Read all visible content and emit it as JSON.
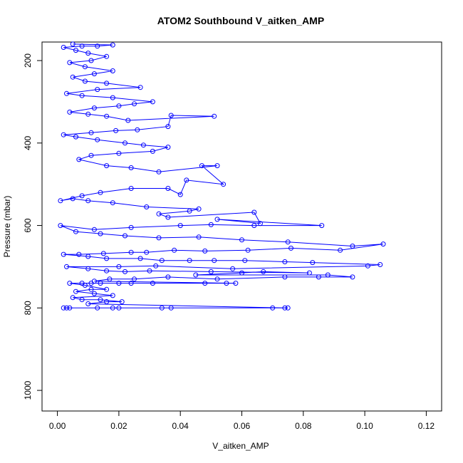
{
  "chart_data": {
    "type": "scatter",
    "title": "ATOM2 Southbound V_aitken_AMP",
    "xlabel": "V_aitken_AMP",
    "ylabel": "Pressure (mbar)",
    "xlim": [
      -0.005,
      0.125
    ],
    "ylim": [
      1050,
      155
    ],
    "y_reversed": true,
    "x_ticks": [
      "0.00",
      "0.02",
      "0.04",
      "0.06",
      "0.08",
      "0.10",
      "0.12"
    ],
    "y_ticks": [
      "200",
      "400",
      "600",
      "800",
      "1000"
    ],
    "x_tick_values": [
      0,
      0.02,
      0.04,
      0.06,
      0.08,
      0.1,
      0.12
    ],
    "y_tick_values": [
      200,
      400,
      600,
      800,
      1000
    ],
    "grid": false,
    "legend": "none",
    "color": "#0000ff",
    "point_style": "open-circle-connected",
    "series": [
      {
        "values": [
          [
            0.002,
            800
          ],
          [
            0.004,
            800
          ],
          [
            0.003,
            800
          ],
          [
            0.013,
            800
          ],
          [
            0.018,
            800
          ],
          [
            0.02,
            800
          ],
          [
            0.034,
            800
          ],
          [
            0.037,
            800
          ],
          [
            0.07,
            800
          ],
          [
            0.074,
            800
          ],
          [
            0.075,
            800
          ],
          [
            0.01,
            790
          ],
          [
            0.016,
            785
          ],
          [
            0.021,
            785
          ],
          [
            0.014,
            780
          ],
          [
            0.008,
            780
          ],
          [
            0.005,
            775
          ],
          [
            0.018,
            770
          ],
          [
            0.012,
            765
          ],
          [
            0.006,
            760
          ],
          [
            0.011,
            755
          ],
          [
            0.016,
            755
          ],
          [
            0.009,
            745
          ],
          [
            0.004,
            740
          ],
          [
            0.008,
            740
          ],
          [
            0.011,
            740
          ],
          [
            0.014,
            740
          ],
          [
            0.02,
            740
          ],
          [
            0.024,
            740
          ],
          [
            0.031,
            740
          ],
          [
            0.048,
            740
          ],
          [
            0.055,
            740
          ],
          [
            0.058,
            740
          ],
          [
            0.012,
            735
          ],
          [
            0.017,
            730
          ],
          [
            0.025,
            730
          ],
          [
            0.036,
            725
          ],
          [
            0.052,
            730
          ],
          [
            0.074,
            725
          ],
          [
            0.085,
            725
          ],
          [
            0.096,
            725
          ],
          [
            0.088,
            720
          ],
          [
            0.045,
            720
          ],
          [
            0.06,
            715
          ],
          [
            0.067,
            712
          ],
          [
            0.082,
            715
          ],
          [
            0.05,
            712
          ],
          [
            0.03,
            710
          ],
          [
            0.022,
            712
          ],
          [
            0.016,
            710
          ],
          [
            0.01,
            705
          ],
          [
            0.003,
            700
          ],
          [
            0.02,
            700
          ],
          [
            0.032,
            698
          ],
          [
            0.057,
            705
          ],
          [
            0.101,
            698
          ],
          [
            0.105,
            695
          ],
          [
            0.083,
            690
          ],
          [
            0.074,
            688
          ],
          [
            0.061,
            685
          ],
          [
            0.051,
            685
          ],
          [
            0.043,
            685
          ],
          [
            0.034,
            685
          ],
          [
            0.027,
            680
          ],
          [
            0.016,
            680
          ],
          [
            0.01,
            675
          ],
          [
            0.002,
            670
          ],
          [
            0.007,
            670
          ],
          [
            0.015,
            668
          ],
          [
            0.024,
            665
          ],
          [
            0.029,
            665
          ],
          [
            0.038,
            660
          ],
          [
            0.048,
            662
          ],
          [
            0.062,
            660
          ],
          [
            0.076,
            655
          ],
          [
            0.092,
            660
          ],
          [
            0.106,
            645
          ],
          [
            0.096,
            650
          ],
          [
            0.075,
            640
          ],
          [
            0.06,
            635
          ],
          [
            0.046,
            628
          ],
          [
            0.033,
            630
          ],
          [
            0.022,
            625
          ],
          [
            0.014,
            620
          ],
          [
            0.006,
            615
          ],
          [
            0.001,
            600
          ],
          [
            0.012,
            610
          ],
          [
            0.024,
            605
          ],
          [
            0.04,
            600
          ],
          [
            0.05,
            598
          ],
          [
            0.064,
            600
          ],
          [
            0.086,
            600
          ],
          [
            0.052,
            585
          ],
          [
            0.066,
            595
          ],
          [
            0.064,
            568
          ],
          [
            0.036,
            580
          ],
          [
            0.033,
            572
          ],
          [
            0.043,
            565
          ],
          [
            0.046,
            560
          ],
          [
            0.029,
            555
          ],
          [
            0.018,
            545
          ],
          [
            0.01,
            540
          ],
          [
            0.005,
            535
          ],
          [
            0.001,
            540
          ],
          [
            0.008,
            528
          ],
          [
            0.014,
            520
          ],
          [
            0.024,
            510
          ],
          [
            0.036,
            510
          ],
          [
            0.04,
            525
          ],
          [
            0.042,
            490
          ],
          [
            0.054,
            500
          ],
          [
            0.047,
            455
          ],
          [
            0.052,
            455
          ],
          [
            0.033,
            470
          ],
          [
            0.024,
            460
          ],
          [
            0.016,
            455
          ],
          [
            0.007,
            440
          ],
          [
            0.011,
            430
          ],
          [
            0.02,
            425
          ],
          [
            0.031,
            420
          ],
          [
            0.036,
            410
          ],
          [
            0.028,
            405
          ],
          [
            0.022,
            400
          ],
          [
            0.013,
            392
          ],
          [
            0.006,
            385
          ],
          [
            0.002,
            380
          ],
          [
            0.011,
            375
          ],
          [
            0.019,
            370
          ],
          [
            0.026,
            368
          ],
          [
            0.036,
            360
          ],
          [
            0.037,
            333
          ],
          [
            0.051,
            335
          ],
          [
            0.023,
            345
          ],
          [
            0.016,
            335
          ],
          [
            0.01,
            330
          ],
          [
            0.004,
            325
          ],
          [
            0.012,
            315
          ],
          [
            0.02,
            310
          ],
          [
            0.025,
            305
          ],
          [
            0.031,
            300
          ],
          [
            0.018,
            290
          ],
          [
            0.008,
            285
          ],
          [
            0.003,
            280
          ],
          [
            0.013,
            270
          ],
          [
            0.027,
            265
          ],
          [
            0.016,
            255
          ],
          [
            0.009,
            250
          ],
          [
            0.005,
            240
          ],
          [
            0.012,
            232
          ],
          [
            0.018,
            225
          ],
          [
            0.009,
            215
          ],
          [
            0.004,
            205
          ],
          [
            0.011,
            200
          ],
          [
            0.016,
            190
          ],
          [
            0.01,
            182
          ],
          [
            0.006,
            175
          ],
          [
            0.002,
            168
          ],
          [
            0.008,
            165
          ],
          [
            0.013,
            165
          ],
          [
            0.018,
            162
          ],
          [
            0.005,
            160
          ]
        ]
      }
    ]
  }
}
